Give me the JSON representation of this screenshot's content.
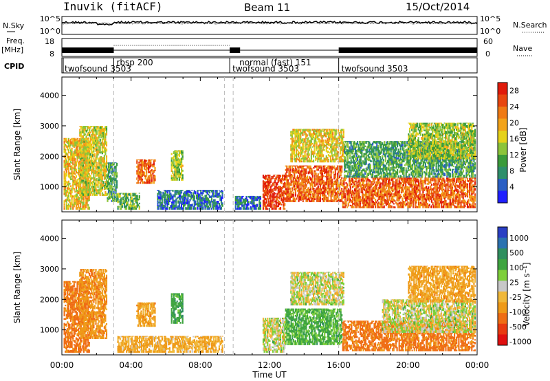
{
  "header": {
    "station": "Inuvik (fitACF)",
    "beam": "Beam 11",
    "date": "15/Oct/2014"
  },
  "strips": {
    "nsky_label": "N.Sky",
    "nsky_ticks": [
      "10^5",
      "10^0"
    ],
    "nsearch_label": "N.Search",
    "nsearch_ticks": [
      "10^5",
      "10^0"
    ],
    "freq_label_1": "Freq.",
    "freq_label_2": "[MHz]",
    "freq_ticks": [
      "18",
      "8"
    ],
    "nave_label": "Nave",
    "nave_ticks": [
      "60",
      "0"
    ],
    "cpid_label": "CPID"
  },
  "cpid_segments": [
    {
      "name": "twofsound 3503",
      "start": 0
    },
    {
      "name": "rbsp 200",
      "start": 3.0
    },
    {
      "name": "normal (fast) 151",
      "start": 9.7
    },
    {
      "name": "twofsound 3503",
      "start": 9.7
    },
    {
      "name": "twofsound 3503",
      "start": 16.0
    }
  ],
  "colors": {
    "power_scale": [
      "#1f1fff",
      "#2a5fc4",
      "#2e8f6b",
      "#3a9b3a",
      "#8cc43a",
      "#e6d21a",
      "#f2a31a",
      "#ef7a14",
      "#e8460f",
      "#e01a0a"
    ],
    "velocity_scale": [
      "#2a3fc4",
      "#2b72b0",
      "#2f8f5f",
      "#3fa540",
      "#7ecf3a",
      "#c8c8c8",
      "#f0b83a",
      "#ef9a18",
      "#ef6d14",
      "#e83a10",
      "#e01010"
    ],
    "ground_scatter": "#c8c8c8"
  },
  "chart_data": [
    {
      "type": "heatmap",
      "title": "Power",
      "ylabel": "Slant Range [km]",
      "xlabel": "Time UT",
      "x_ticks": [
        "00:00",
        "04:00",
        "08:00",
        "12:00",
        "16:00",
        "20:00",
        "00:00"
      ],
      "y_ticks": [
        "1000",
        "2000",
        "3000",
        "4000"
      ],
      "xlim": [
        0,
        24
      ],
      "ylim": [
        180,
        4600
      ],
      "colorbar_label": "Power [dB]",
      "colorbar_ticks": [
        "4",
        "8",
        "12",
        "16",
        "20",
        "24",
        "28"
      ],
      "clim": [
        0,
        30
      ],
      "regions": [
        {
          "t0": 0.1,
          "t1": 1.6,
          "r0": 250,
          "r1": 2600,
          "level": 18
        },
        {
          "t0": 1.0,
          "t1": 2.6,
          "r0": 700,
          "r1": 3000,
          "level": 16
        },
        {
          "t0": 2.6,
          "t1": 3.2,
          "r0": 500,
          "r1": 1800,
          "level": 10
        },
        {
          "t0": 4.3,
          "t1": 5.4,
          "r0": 1100,
          "r1": 1900,
          "level": 24
        },
        {
          "t0": 3.2,
          "t1": 4.5,
          "r0": 250,
          "r1": 800,
          "level": 12
        },
        {
          "t0": 6.3,
          "t1": 7.0,
          "r0": 1200,
          "r1": 2200,
          "level": 14
        },
        {
          "t0": 5.5,
          "t1": 9.3,
          "r0": 250,
          "r1": 900,
          "level": 6
        },
        {
          "t0": 11.6,
          "t1": 12.9,
          "r0": 250,
          "r1": 1400,
          "level": 27
        },
        {
          "t0": 12.9,
          "t1": 16.2,
          "r0": 500,
          "r1": 1700,
          "level": 24
        },
        {
          "t0": 13.2,
          "t1": 16.3,
          "r0": 1800,
          "r1": 2900,
          "level": 17
        },
        {
          "t0": 16.2,
          "t1": 23.9,
          "r0": 300,
          "r1": 1300,
          "level": 24
        },
        {
          "t0": 16.3,
          "t1": 23.9,
          "r0": 1300,
          "r1": 2500,
          "level": 10
        },
        {
          "t0": 20.0,
          "t1": 23.9,
          "r0": 1900,
          "r1": 3100,
          "level": 14
        },
        {
          "t0": 10.0,
          "t1": 11.5,
          "r0": 250,
          "r1": 700,
          "level": 6
        }
      ]
    },
    {
      "type": "heatmap",
      "title": "Velocity",
      "ylabel": "Slant Range [km]",
      "xlabel": "Time UT",
      "x_ticks": [
        "00:00",
        "04:00",
        "08:00",
        "12:00",
        "16:00",
        "20:00",
        "00:00"
      ],
      "y_ticks": [
        "1000",
        "2000",
        "3000",
        "4000"
      ],
      "xlim": [
        0,
        24
      ],
      "ylim": [
        180,
        4600
      ],
      "colorbar_label": "Velocity [m s⁻¹]",
      "colorbar_ticks": [
        "1000",
        "500",
        "100",
        "25",
        "-25",
        "-100",
        "-500",
        "-1000"
      ],
      "regions": [
        {
          "t0": 0.1,
          "t1": 1.6,
          "r0": 250,
          "r1": 2600,
          "vel": -300
        },
        {
          "t0": 1.0,
          "t1": 2.6,
          "r0": 700,
          "r1": 3000,
          "vel": -200
        },
        {
          "t0": 4.3,
          "t1": 5.4,
          "r0": 1100,
          "r1": 1900,
          "vel": -150
        },
        {
          "t0": 6.3,
          "t1": 7.0,
          "r0": 1200,
          "r1": 2200,
          "vel": 200
        },
        {
          "t0": 3.2,
          "t1": 9.3,
          "r0": 250,
          "r1": 800,
          "vel": -120
        },
        {
          "t0": 11.6,
          "t1": 12.9,
          "r0": 250,
          "r1": 1400,
          "vel": 0
        },
        {
          "t0": 12.9,
          "t1": 16.2,
          "r0": 500,
          "r1": 1700,
          "vel": 150
        },
        {
          "t0": 13.2,
          "t1": 16.3,
          "r0": 1800,
          "r1": 2900,
          "vel": 0
        },
        {
          "t0": 16.2,
          "t1": 23.9,
          "r0": 300,
          "r1": 1300,
          "vel": -300
        },
        {
          "t0": 18.5,
          "t1": 23.9,
          "r0": 900,
          "r1": 2000,
          "vel": 0
        },
        {
          "t0": 20.0,
          "t1": 23.9,
          "r0": 1900,
          "r1": 3100,
          "vel": -150
        }
      ]
    }
  ]
}
